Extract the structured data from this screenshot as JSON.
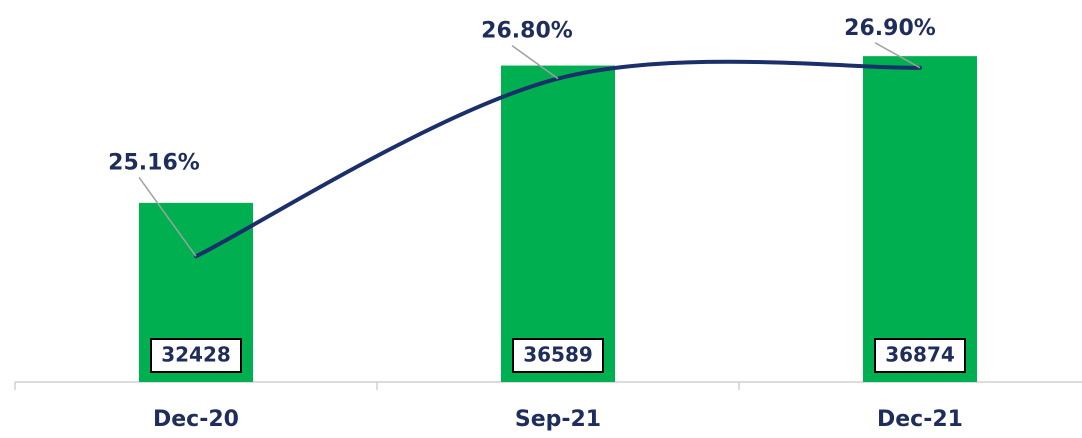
{
  "chart_data": {
    "type": "bar",
    "categories": [
      "Dec-20",
      "Sep-21",
      "Dec-21"
    ],
    "series": [
      {
        "type": "bar",
        "color": "#00b050",
        "values": [
          32428,
          36589,
          36874
        ]
      },
      {
        "type": "line",
        "axis": "y2",
        "color": "#1b2f6b",
        "values": [
          25.16,
          26.8,
          26.9
        ],
        "value_labels": [
          "25.16%",
          "26.80%",
          "26.90%"
        ]
      }
    ],
    "ylim": [
      27000,
      38000
    ],
    "y2lim": [
      24,
      27.35
    ]
  }
}
